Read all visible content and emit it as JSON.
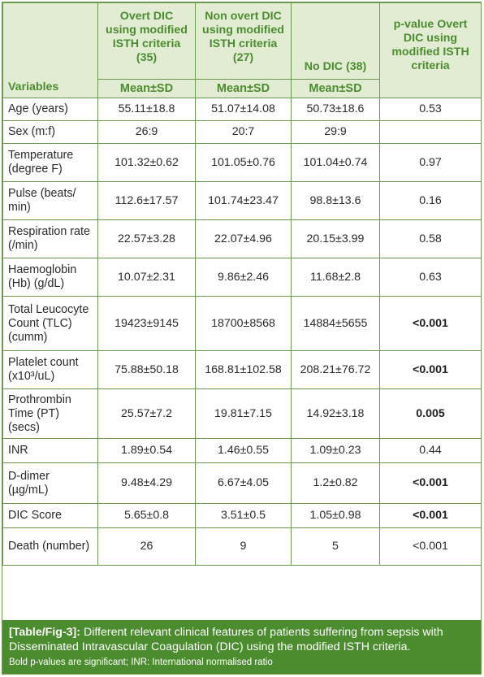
{
  "table": {
    "headers": {
      "variables": "Variables",
      "overt": "Overt DIC using modified ISTH criteria (35)",
      "nonovert": "Non overt DIC using modified ISTH criteria (27)",
      "nodic": "No DIC (38)",
      "pvalue": "p-value Overt DIC using modified ISTH criteria",
      "mean_sd": "Mean±SD"
    },
    "rows": [
      {
        "variable": "Age (years)",
        "overt": "55.11±18.8",
        "nonovert": "51.07±14.08",
        "nodic": "50.73±18.6",
        "p": "0.53",
        "bold": false
      },
      {
        "variable": "Sex (m:f)",
        "overt": "26:9",
        "nonovert": "20:7",
        "nodic": "29:9",
        "p": "",
        "bold": false
      },
      {
        "variable": "Temperature (degree F)",
        "overt": "101.32±0.62",
        "nonovert": "101.05±0.76",
        "nodic": "101.04±0.74",
        "p": "0.97",
        "bold": false
      },
      {
        "variable": "Pulse (beats/ min)",
        "overt": "112.6±17.57",
        "nonovert": "101.74±23.47",
        "nodic": "98.8±13.6",
        "p": "0.16",
        "bold": false
      },
      {
        "variable": "Respiration rate (/min)",
        "overt": "22.57±3.28",
        "nonovert": "22.07±4.96",
        "nodic": "20.15±3.99",
        "p": "0.58",
        "bold": false
      },
      {
        "variable": "Haemoglobin (Hb) (g/dL)",
        "overt": "10.07±2.31",
        "nonovert": "9.86±2.46",
        "nodic": "11.68±2.8",
        "p": "0.63",
        "bold": false
      },
      {
        "variable": "Total Leucocyte Count (TLC) (cumm)",
        "overt": "19423±9145",
        "nonovert": "18700±8568",
        "nodic": "14884±5655",
        "p": "<0.001",
        "bold": true
      },
      {
        "variable": "Platelet count (x10³/uL)",
        "overt": "75.88±50.18",
        "nonovert": "168.81±102.58",
        "nodic": "208.21±76.72",
        "p": "<0.001",
        "bold": true
      },
      {
        "variable": "Prothrombin Time (PT) (secs)",
        "overt": "25.57±7.2",
        "nonovert": "19.81±7.15",
        "nodic": "14.92±3.18",
        "p": "0.005",
        "bold": true
      },
      {
        "variable": "INR",
        "overt": "1.89±0.54",
        "nonovert": "1.46±0.55",
        "nodic": "1.09±0.23",
        "p": "0.44",
        "bold": false
      },
      {
        "variable": "D-dimer (µg/mL)",
        "overt": "9.48±4.29",
        "nonovert": "6.67±4.05",
        "nodic": "1.2±0.82",
        "p": "<0.001",
        "bold": true
      },
      {
        "variable": "DIC Score",
        "overt": "5.65±0.8",
        "nonovert": "3.51±0.5",
        "nodic": "1.05±0.98",
        "p": "<0.001",
        "bold": true
      },
      {
        "variable": "Death (number)",
        "overt": "26",
        "nonovert": "9",
        "nodic": "5",
        "p": "<0.001",
        "bold": false
      }
    ]
  },
  "caption": {
    "label": "[Table/Fig-3]:",
    "text": "Different relevant clinical features of patients suffering from sepsis with Disseminated Intravascular Coagulation (DIC) using the modified ISTH criteria.",
    "note": "Bold p-values are significant; INR: International normalised ratio"
  },
  "colors": {
    "header_bg": "#e1ecd3",
    "accent_green": "#4b8c2e",
    "border": "#6a9a4d"
  }
}
